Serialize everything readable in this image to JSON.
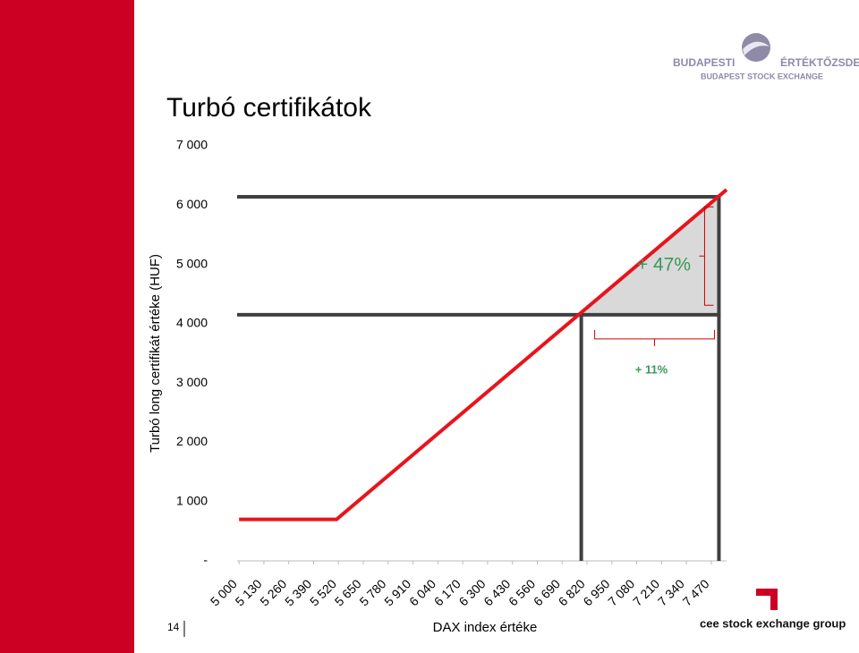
{
  "slide": {
    "page_number": "14",
    "logo_top_left": "BUDAPESTI",
    "logo_top_right": "ÉRTÉKTŐZSDE",
    "logo_sub": "BUDAPEST STOCK EXCHANGE",
    "logo_bottom": "cee stock exchange group"
  },
  "chart_data": {
    "type": "line",
    "title": "Turbó certifikátok",
    "x_label": "DAX index értéke",
    "y_label": "Turbó long certifikát értéke (HUF)",
    "x": [
      5000,
      5510,
      7550
    ],
    "series": [
      {
        "name": "Turbó long",
        "color": "#e8141c",
        "values": [
          700,
          700,
          6260
        ]
      }
    ],
    "xlim": [
      4990,
      7550
    ],
    "ylim": [
      0,
      7000
    ],
    "xticks": [
      {
        "value": 5000,
        "label": "5 000"
      },
      {
        "value": 5130,
        "label": "5 130"
      },
      {
        "value": 5260,
        "label": "5 260"
      },
      {
        "value": 5390,
        "label": "5 390"
      },
      {
        "value": 5520,
        "label": "5 520"
      },
      {
        "value": 5650,
        "label": "5 650"
      },
      {
        "value": 5780,
        "label": "5 780"
      },
      {
        "value": 5910,
        "label": "5 910"
      },
      {
        "value": 6040,
        "label": "6 040"
      },
      {
        "value": 6170,
        "label": "6 170"
      },
      {
        "value": 6300,
        "label": "6 300"
      },
      {
        "value": 6430,
        "label": "6 430"
      },
      {
        "value": 6560,
        "label": "6 560"
      },
      {
        "value": 6690,
        "label": "6 690"
      },
      {
        "value": 6820,
        "label": "6 820"
      },
      {
        "value": 6950,
        "label": "6 950"
      },
      {
        "value": 7080,
        "label": "7 080"
      },
      {
        "value": 7210,
        "label": "7 210"
      },
      {
        "value": 7340,
        "label": "7 340"
      },
      {
        "value": 7470,
        "label": "7 470"
      }
    ],
    "yticks": [
      {
        "value": 0,
        "label": "-"
      },
      {
        "value": 1000,
        "label": "1 000"
      },
      {
        "value": 2000,
        "label": "2 000"
      },
      {
        "value": 3000,
        "label": "3 000"
      },
      {
        "value": 4000,
        "label": "4 000"
      },
      {
        "value": 5000,
        "label": "5 000"
      },
      {
        "value": 6000,
        "label": "6 000"
      },
      {
        "value": 7000,
        "label": "7 000"
      }
    ],
    "hlines": [
      4150,
      6140
    ],
    "vlines": [
      6790,
      7510
    ],
    "reference_color": "#404040",
    "annotations": [
      "+ 47%",
      "+ 11%"
    ]
  }
}
